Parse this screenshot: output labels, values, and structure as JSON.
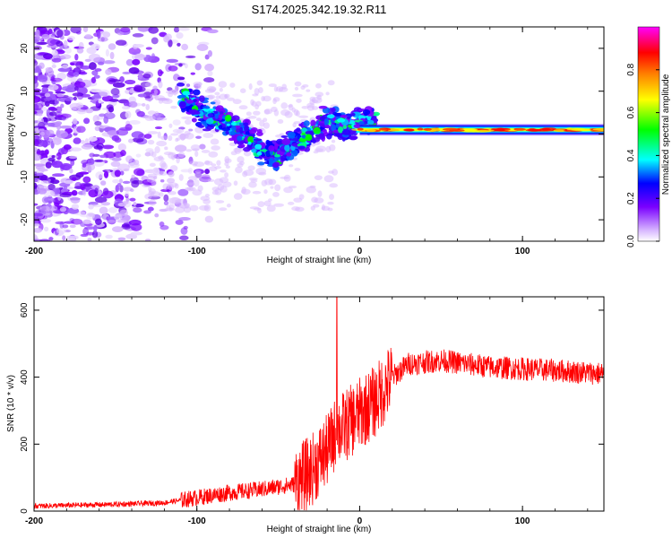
{
  "title": "S174.2025.342.19.32.R11",
  "chart_data": [
    {
      "type": "heatmap",
      "xlabel": "Height of straight line (km)",
      "ylabel": "Frequency (Hz)",
      "xlim": [
        -200,
        150
      ],
      "ylim": [
        -25,
        25
      ],
      "x_ticks": [
        -200,
        -100,
        0,
        100
      ],
      "y_ticks": [
        -20,
        -10,
        0,
        10,
        20
      ],
      "x_tick_labels": [
        "-200",
        "-100",
        "0",
        "100"
      ],
      "y_tick_labels": [
        "-20",
        "-10",
        "0",
        "10",
        "20"
      ],
      "colorbar": {
        "label": "Normalized spectral amplitude",
        "range": [
          0,
          1
        ],
        "ticks": [
          0.0,
          0.2,
          0.4,
          0.6,
          0.8
        ],
        "tick_labels": [
          "0.0",
          "0.2",
          "0.4",
          "0.6",
          "0.8"
        ],
        "colors": [
          "#ffffff",
          "#d8b8ff",
          "#7a00ff",
          "#0000ff",
          "#00ffff",
          "#00ff00",
          "#ffff00",
          "#ff8000",
          "#ff0000",
          "#ff00ff"
        ]
      },
      "features": {
        "diffuse_noise_x_range": [
          -200,
          -110
        ],
        "ridge_trace": [
          {
            "x": -110,
            "y": 9
          },
          {
            "x": -100,
            "y": 6
          },
          {
            "x": -90,
            "y": 4
          },
          {
            "x": -80,
            "y": 2
          },
          {
            "x": -70,
            "y": 0
          },
          {
            "x": -60,
            "y": -4
          },
          {
            "x": -50,
            "y": -5
          },
          {
            "x": -40,
            "y": -2
          },
          {
            "x": -30,
            "y": 0
          },
          {
            "x": -20,
            "y": 3
          },
          {
            "x": -10,
            "y": 2
          },
          {
            "x": 0,
            "y": 3
          }
        ],
        "horizontal_band": {
          "x_start": 0,
          "x_end": 150,
          "y_center": 1,
          "peak_value": 1.0
        }
      }
    },
    {
      "type": "line",
      "xlabel": "Height of straight line (km)",
      "ylabel": "SNR (10 * v/v)",
      "xlim": [
        -200,
        150
      ],
      "ylim": [
        0,
        640
      ],
      "x_ticks": [
        -200,
        -100,
        0,
        100
      ],
      "y_ticks": [
        0,
        200,
        400,
        600
      ],
      "x_tick_labels": [
        "-200",
        "-100",
        "0",
        "100"
      ],
      "y_tick_labels": [
        "0",
        "200",
        "400",
        "600"
      ],
      "series": [
        {
          "name": "SNR",
          "color": "#ff0000",
          "trend": [
            {
              "x": -200,
              "y": 15
            },
            {
              "x": -150,
              "y": 20
            },
            {
              "x": -120,
              "y": 25
            },
            {
              "x": -100,
              "y": 40
            },
            {
              "x": -80,
              "y": 55
            },
            {
              "x": -60,
              "y": 65
            },
            {
              "x": -40,
              "y": 80
            },
            {
              "x": -30,
              "y": 120
            },
            {
              "x": -20,
              "y": 180
            },
            {
              "x": -14,
              "y": 240
            },
            {
              "x": -10,
              "y": 250
            },
            {
              "x": 0,
              "y": 290
            },
            {
              "x": 10,
              "y": 330
            },
            {
              "x": 20,
              "y": 400
            },
            {
              "x": 30,
              "y": 440
            },
            {
              "x": 50,
              "y": 450
            },
            {
              "x": 80,
              "y": 430
            },
            {
              "x": 120,
              "y": 420
            },
            {
              "x": 150,
              "y": 410
            }
          ],
          "spike": {
            "x": -14,
            "y": 640
          }
        }
      ]
    }
  ]
}
